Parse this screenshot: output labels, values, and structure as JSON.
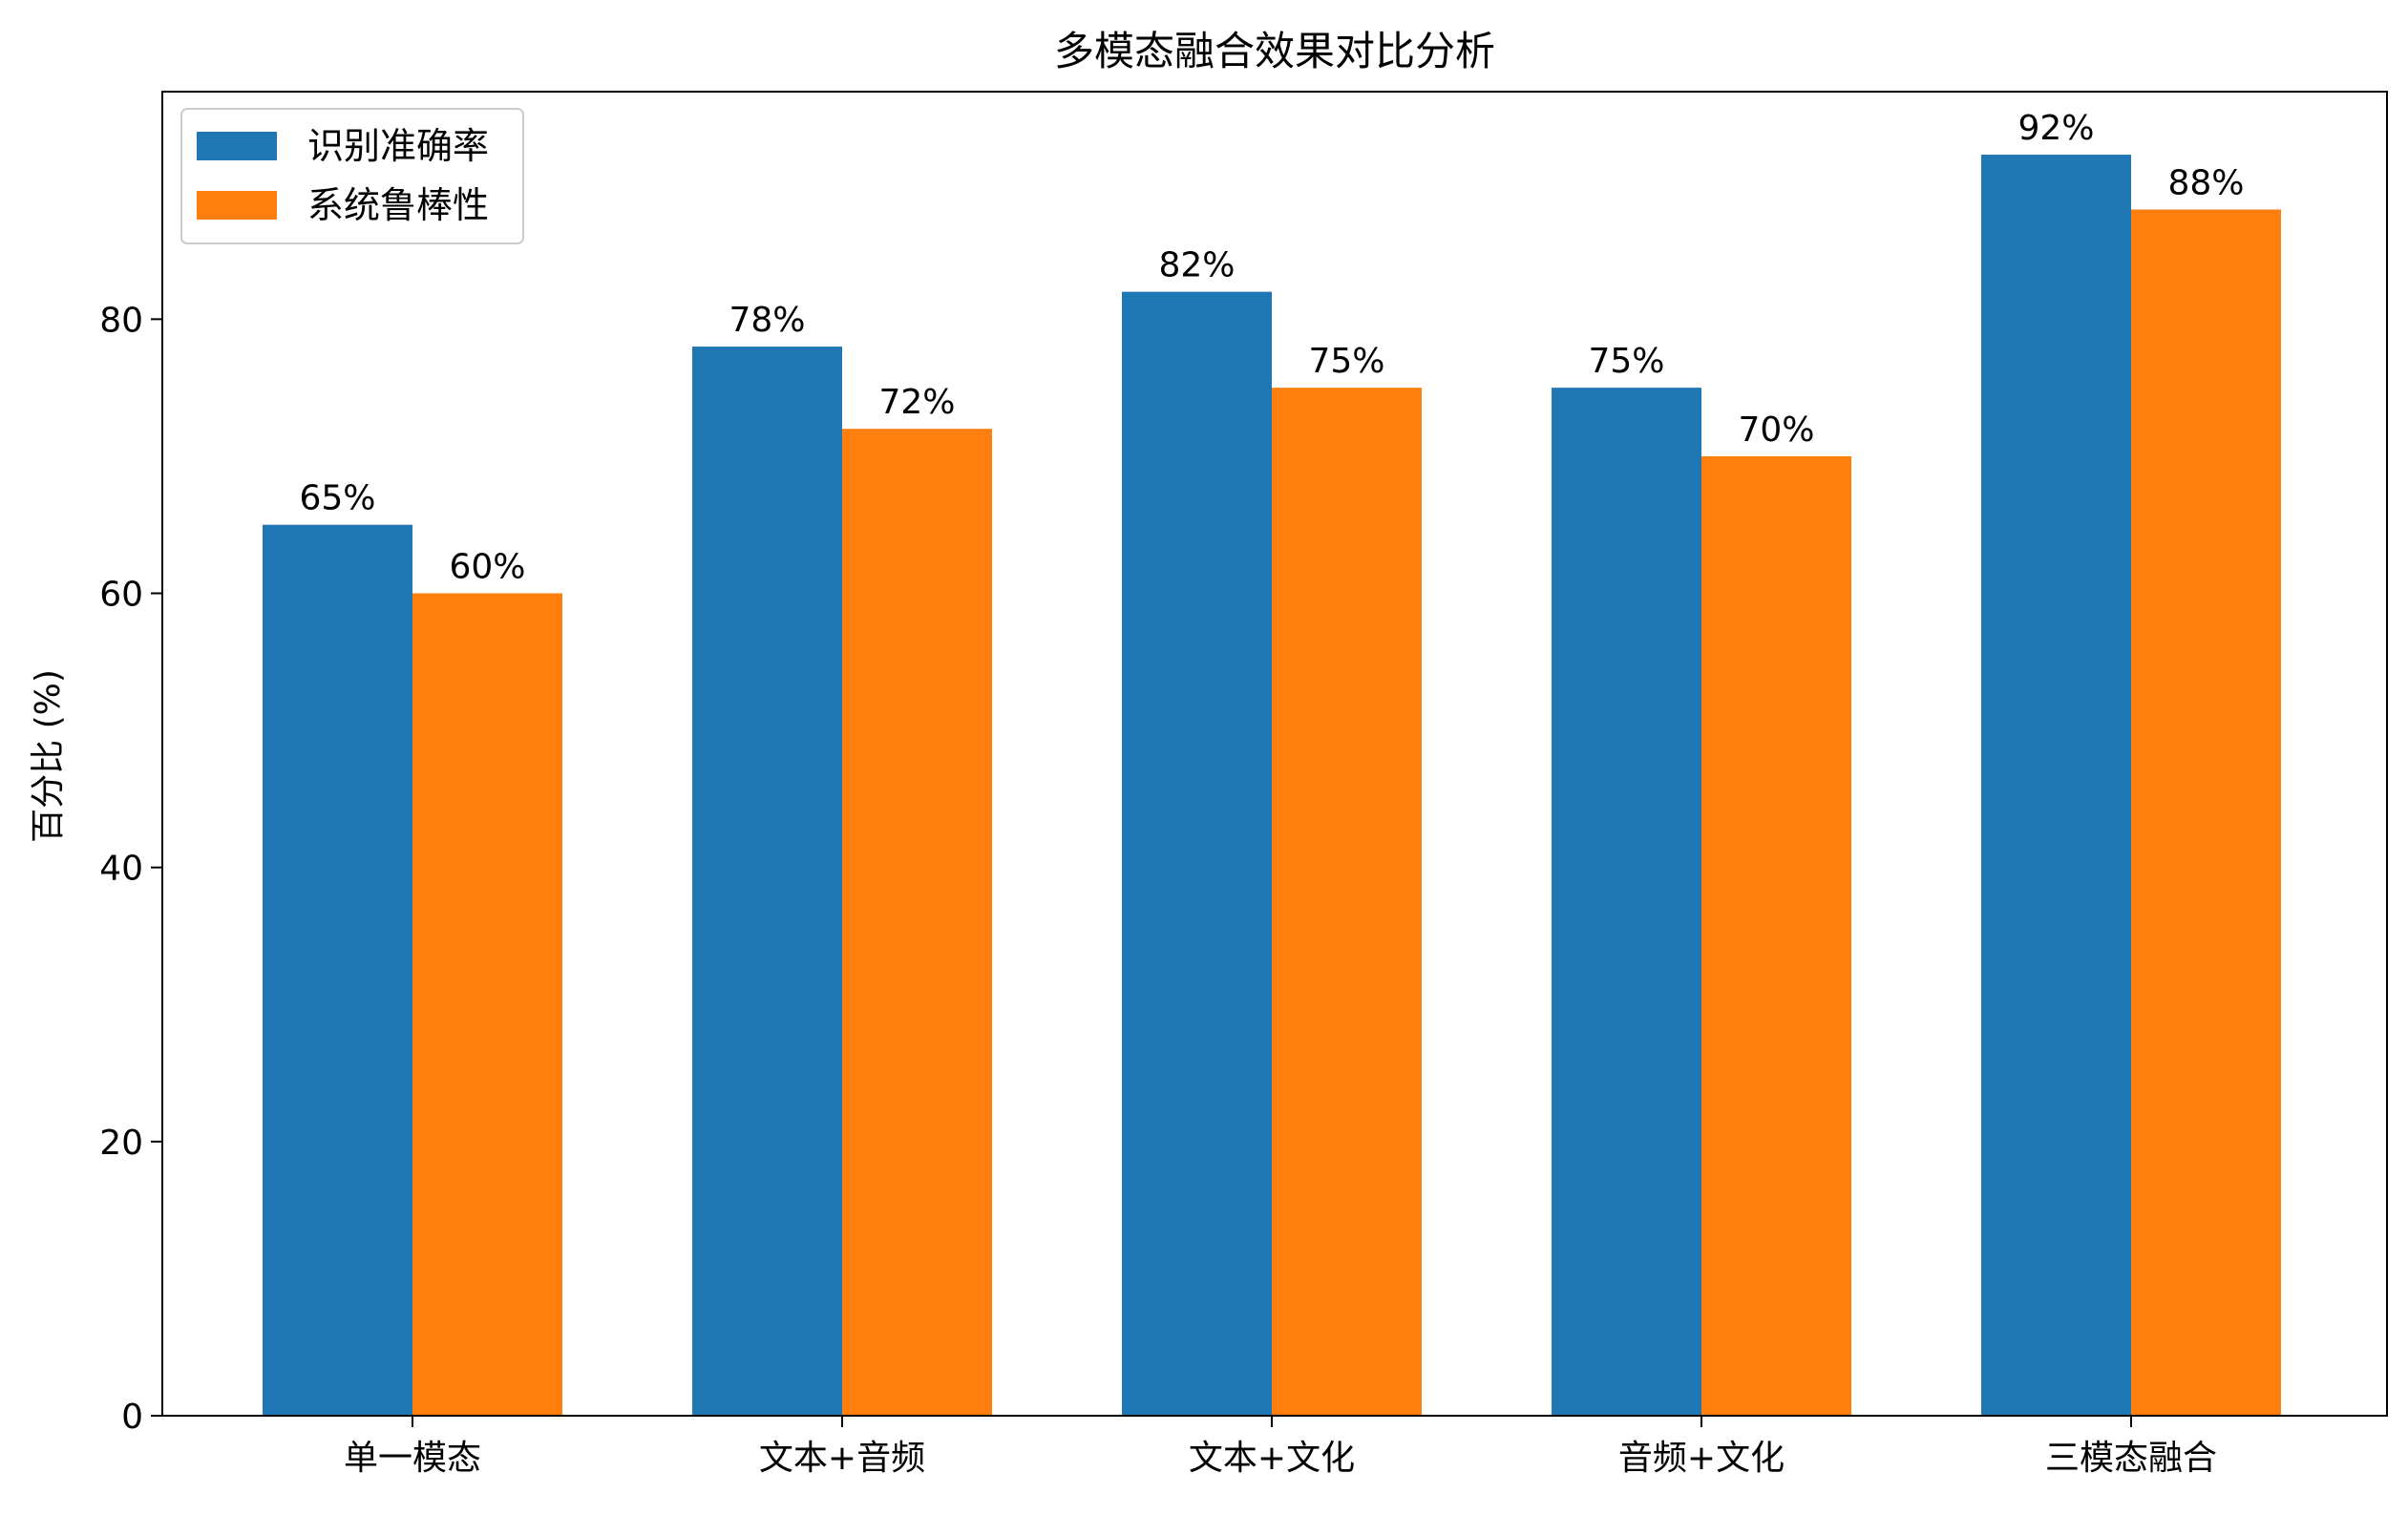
{
  "chart_data": {
    "type": "bar",
    "title": "多模态融合效果对比分析",
    "xlabel": "",
    "ylabel": "百分比 (%)",
    "categories": [
      "单一模态",
      "文本+音频",
      "文本+文化",
      "音频+文化",
      "三模态融合"
    ],
    "series": [
      {
        "name": "识别准确率",
        "color": "#1f77b4",
        "values": [
          65,
          78,
          82,
          75,
          92
        ]
      },
      {
        "name": "系统鲁棒性",
        "color": "#ff7f0e",
        "values": [
          60,
          72,
          75,
          70,
          88
        ]
      }
    ],
    "value_label_suffix": "%",
    "yticks": [
      0,
      20,
      40,
      60,
      80
    ],
    "ylim": [
      0,
      96.6
    ],
    "grid": false,
    "legend_placement": "top-left"
  }
}
